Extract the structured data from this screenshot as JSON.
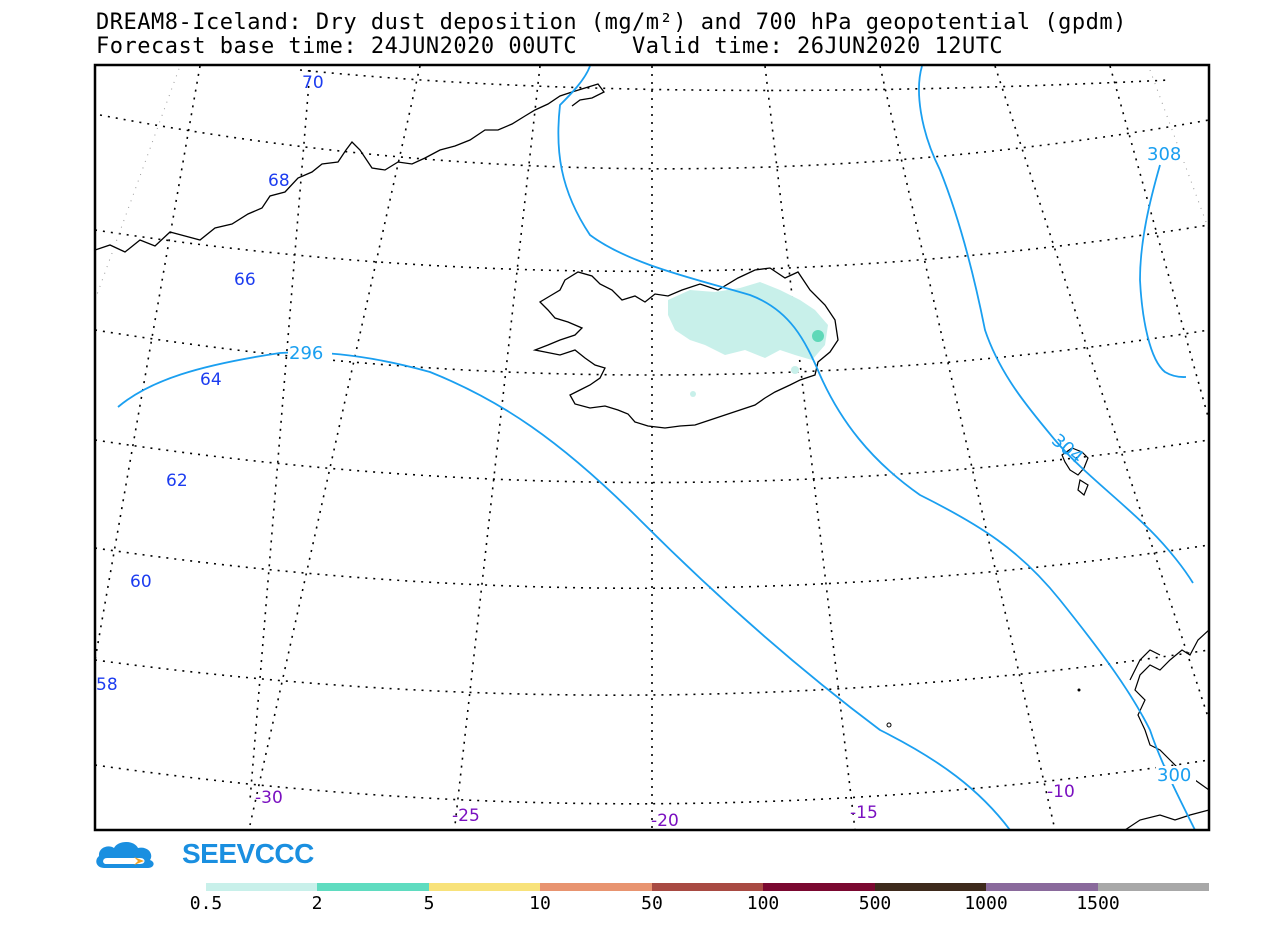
{
  "title": {
    "line1": "DREAM8-Iceland: Dry dust deposition (mg/m²) and 700 hPa geopotential (gpdm)",
    "line2": "Forecast base time: 24JUN2020 00UTC    Valid time: 26JUN2020 12UTC"
  },
  "map": {
    "latitude_labels": [
      "70",
      "68",
      "66",
      "64",
      "62",
      "60",
      "58"
    ],
    "longitude_labels": [
      "-30",
      "-25",
      "-20",
      "-15",
      "-10"
    ],
    "contour_labels": [
      "296",
      "308",
      "304",
      "300"
    ],
    "dust_fill_color": "#c8f0ea",
    "dust_spot_color": "#5fd8b8",
    "contour_color": "#1a9ff0",
    "lat_label_color": "#1c3cf0",
    "lon_label_color": "#7a10c0"
  },
  "logo": {
    "text": "SEEVCCC"
  },
  "colorbar": {
    "labels": [
      "0.5",
      "2",
      "5",
      "10",
      "50",
      "100",
      "500",
      "1000",
      "1500"
    ],
    "colors": [
      "#c8f0ea",
      "#5fdcc0",
      "#f8e27a",
      "#e89470",
      "#a84a42",
      "#7a0830",
      "#3e2a1c",
      "#8a6a9c",
      "#a8a8a8"
    ]
  }
}
